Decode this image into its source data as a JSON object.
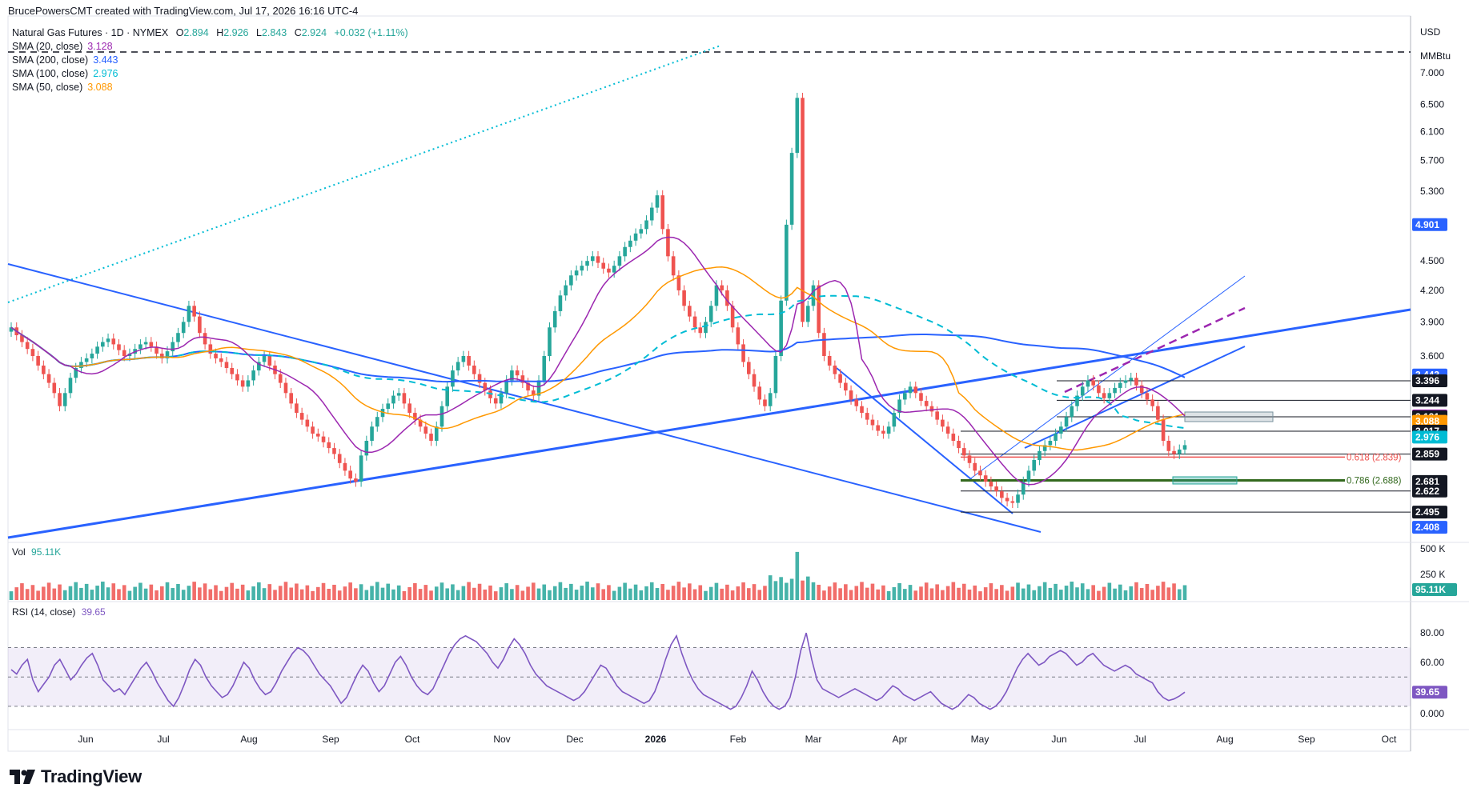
{
  "header": {
    "attribution": "BrucePowersCMT created with TradingView.com, Jul 17, 2026 16:16 UTC-4"
  },
  "symbol": {
    "title": "Natural Gas Futures · 1D · NYMEX",
    "open_label": "O",
    "open": "2.894",
    "high_label": "H",
    "high": "2.926",
    "low_label": "L",
    "low": "2.843",
    "close_label": "C",
    "close": "2.924",
    "change": "+0.032 (+1.11%)"
  },
  "indicators": [
    {
      "label": "SMA (20, close)",
      "value": "3.128",
      "color": "#9c27b0"
    },
    {
      "label": "SMA (200, close)",
      "value": "3.443",
      "color": "#2962ff"
    },
    {
      "label": "SMA (100, close)",
      "value": "2.976",
      "color": "#00bcd4"
    },
    {
      "label": "SMA (50, close)",
      "value": "3.088",
      "color": "#ff9800"
    }
  ],
  "volume_label": {
    "name": "Vol",
    "value": "95.11K"
  },
  "rsi_label": {
    "name": "RSI (14, close)",
    "value": "39.65"
  },
  "currency": "USD",
  "unit": "MMBtu",
  "logo_text": "TradingView",
  "colors": {
    "up": "#26a69a",
    "down": "#ef5350",
    "sma20": "#9c27b0",
    "sma50": "#ff9800",
    "sma100": "#00bcd4",
    "sma200": "#2962ff",
    "trendline": "#2962ff",
    "rsi": "#7e57c2"
  },
  "chart_data": {
    "type": "candlestick",
    "instrument": "Natural Gas Futures",
    "timeframe": "1D",
    "price_scale": "log",
    "price_axis_ticks": [
      "7.000",
      "6.500",
      "6.100",
      "5.700",
      "5.300",
      "4.500",
      "4.200",
      "3.900",
      "3.600"
    ],
    "time_axis_labels": [
      "Jun",
      "Jul",
      "Aug",
      "Sep",
      "Oct",
      "Nov",
      "Dec",
      "2026",
      "Feb",
      "Mar",
      "Apr",
      "May",
      "Jun",
      "Jul",
      "Aug",
      "Sep",
      "Oct"
    ],
    "price_badges": [
      {
        "value": "4.901",
        "color": "#2962ff"
      },
      {
        "value": "3.443",
        "color": "#2962ff"
      },
      {
        "value": "3.396",
        "color": "#131722"
      },
      {
        "value": "3.244",
        "color": "#131722"
      },
      {
        "value": "3.128",
        "color": "#9c27b0"
      },
      {
        "value": "3.121",
        "color": "#131722"
      },
      {
        "value": "3.088",
        "color": "#ff9800"
      },
      {
        "value": "3.017",
        "color": "#131722"
      },
      {
        "value": "2.976",
        "color": "#00bcd4"
      },
      {
        "value": "2.859",
        "color": "#131722"
      },
      {
        "value": "2.681",
        "color": "#131722"
      },
      {
        "value": "2.622",
        "color": "#131722"
      },
      {
        "value": "2.495",
        "color": "#131722"
      },
      {
        "value": "2.408",
        "color": "#2962ff"
      }
    ],
    "horizontal_levels": [
      7.35,
      3.396,
      3.244,
      3.121,
      3.017,
      2.859,
      2.622,
      2.495
    ],
    "fib_levels": [
      {
        "label": "0.618 (2.839)",
        "value": 2.839,
        "color": "#ef5350"
      },
      {
        "label": "0.786 (2.688)",
        "value": 2.688,
        "color": "#33691e"
      }
    ],
    "closes": [
      3.85,
      3.78,
      3.72,
      3.66,
      3.6,
      3.52,
      3.45,
      3.38,
      3.3,
      3.2,
      3.3,
      3.42,
      3.5,
      3.55,
      3.58,
      3.62,
      3.68,
      3.72,
      3.75,
      3.7,
      3.65,
      3.6,
      3.62,
      3.66,
      3.7,
      3.72,
      3.68,
      3.62,
      3.58,
      3.64,
      3.72,
      3.8,
      3.9,
      4.05,
      3.95,
      3.8,
      3.7,
      3.62,
      3.58,
      3.55,
      3.5,
      3.45,
      3.4,
      3.35,
      3.4,
      3.48,
      3.55,
      3.6,
      3.52,
      3.45,
      3.38,
      3.3,
      3.22,
      3.15,
      3.1,
      3.05,
      3.0,
      2.98,
      2.94,
      2.9,
      2.86,
      2.8,
      2.75,
      2.7,
      2.68,
      2.85,
      2.95,
      3.05,
      3.12,
      3.18,
      3.22,
      3.28,
      3.3,
      3.22,
      3.15,
      3.1,
      3.05,
      3.0,
      2.95,
      3.05,
      3.2,
      3.35,
      3.48,
      3.55,
      3.6,
      3.52,
      3.45,
      3.38,
      3.32,
      3.26,
      3.22,
      3.3,
      3.4,
      3.48,
      3.44,
      3.38,
      3.32,
      3.28,
      3.4,
      3.6,
      3.85,
      4.0,
      4.15,
      4.25,
      4.35,
      4.4,
      4.45,
      4.5,
      4.55,
      4.48,
      4.42,
      4.38,
      4.45,
      4.55,
      4.65,
      4.72,
      4.8,
      4.85,
      4.95,
      5.1,
      5.25,
      4.85,
      4.55,
      4.35,
      4.2,
      4.05,
      3.95,
      3.85,
      3.8,
      3.9,
      4.05,
      4.25,
      4.2,
      4.05,
      3.85,
      3.7,
      3.55,
      3.45,
      3.35,
      3.25,
      3.2,
      3.3,
      3.6,
      4.1,
      4.9,
      5.8,
      6.6,
      3.9,
      4.05,
      4.25,
      3.8,
      3.6,
      3.52,
      3.45,
      3.38,
      3.32,
      3.25,
      3.2,
      3.15,
      3.1,
      3.06,
      3.02,
      3.0,
      3.05,
      3.15,
      3.25,
      3.3,
      3.35,
      3.3,
      3.24,
      3.2,
      3.16,
      3.1,
      3.05,
      3.0,
      2.95,
      2.9,
      2.85,
      2.8,
      2.75,
      2.72,
      2.68,
      2.65,
      2.62,
      2.58,
      2.56,
      2.55,
      2.6,
      2.68,
      2.75,
      2.82,
      2.88,
      2.92,
      2.95,
      3.0,
      3.05,
      3.12,
      3.2,
      3.28,
      3.35,
      3.4,
      3.36,
      3.3,
      3.26,
      3.3,
      3.34,
      3.38,
      3.4,
      3.42,
      3.36,
      3.3,
      3.25,
      3.2,
      3.1,
      2.95,
      2.88,
      2.86,
      2.89,
      2.92
    ],
    "volume_label": "95.11K",
    "volume_axis_ticks": [
      "500 K",
      "250 K"
    ],
    "rsi": [
      55,
      52,
      58,
      62,
      48,
      40,
      45,
      50,
      58,
      62,
      55,
      48,
      52,
      58,
      63,
      66,
      58,
      48,
      44,
      40,
      42,
      38,
      44,
      50,
      56,
      60,
      54,
      46,
      40,
      34,
      30,
      36,
      45,
      55,
      62,
      58,
      50,
      44,
      40,
      36,
      38,
      44,
      52,
      60,
      56,
      48,
      42,
      38,
      40,
      46,
      54,
      60,
      66,
      70,
      68,
      64,
      58,
      52,
      48,
      44,
      38,
      32,
      36,
      44,
      52,
      58,
      54,
      46,
      40,
      44,
      52,
      60,
      64,
      58,
      50,
      44,
      40,
      38,
      42,
      50,
      58,
      66,
      72,
      76,
      78,
      76,
      74,
      70,
      66,
      60,
      56,
      62,
      70,
      76,
      72,
      66,
      58,
      52,
      48,
      44,
      42,
      40,
      38,
      36,
      34,
      36,
      40,
      46,
      52,
      58,
      56,
      50,
      44,
      40,
      38,
      36,
      34,
      32,
      34,
      40,
      50,
      62,
      72,
      78,
      66,
      56,
      48,
      42,
      38,
      36,
      34,
      32,
      30,
      28,
      30,
      36,
      44,
      54,
      48,
      40,
      34,
      30,
      28,
      30,
      36,
      50,
      68,
      80,
      62,
      48,
      42,
      40,
      38,
      36,
      38,
      40,
      42,
      40,
      38,
      36,
      34,
      36,
      40,
      44,
      42,
      38,
      36,
      34,
      36,
      38,
      40,
      36,
      32,
      30,
      28,
      30,
      34,
      38,
      36,
      32,
      30,
      28,
      30,
      34,
      40,
      48,
      56,
      62,
      66,
      62,
      58,
      60,
      64,
      66,
      68,
      66,
      62,
      58,
      60,
      64,
      66,
      62,
      58,
      56,
      54,
      56,
      58,
      56,
      52,
      50,
      48,
      46,
      40,
      36,
      34,
      35,
      37,
      39.65
    ],
    "rsi_axis_ticks": [
      "80.00",
      "60.00",
      "0.000"
    ],
    "rsi_bands": {
      "upper": 70,
      "middle": 50,
      "lower": 30
    }
  }
}
